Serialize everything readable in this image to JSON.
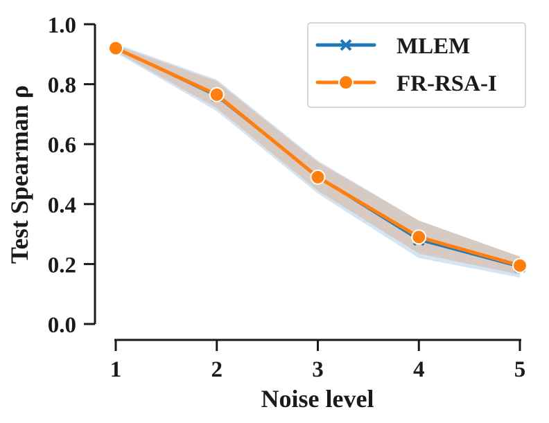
{
  "chart_data": {
    "type": "line",
    "title": "",
    "xlabel": "Noise level",
    "ylabel": "Test Spearman ρ",
    "x": [
      1,
      2,
      3,
      4,
      5
    ],
    "x_ticks": [
      "1",
      "2",
      "3",
      "4",
      "5"
    ],
    "y_ticks": [
      "0.0",
      "0.2",
      "0.4",
      "0.6",
      "0.8",
      "1.0"
    ],
    "ylim": [
      0.0,
      1.0
    ],
    "xlim": [
      1,
      5
    ],
    "grid": false,
    "legend_position": "top-right",
    "series": [
      {
        "name": "MLEM",
        "marker": "x",
        "color": "#1f77b4",
        "band_color": "#aecde8",
        "values": [
          0.92,
          0.76,
          0.49,
          0.28,
          0.19
        ],
        "ci_low": [
          0.905,
          0.71,
          0.435,
          0.22,
          0.155
        ],
        "ci_high": [
          0.935,
          0.815,
          0.545,
          0.345,
          0.225
        ]
      },
      {
        "name": "FR-RSA-I",
        "marker": "o",
        "color": "#ff7f0e",
        "band_color": "#d9b9a3",
        "values": [
          0.92,
          0.765,
          0.49,
          0.29,
          0.195
        ],
        "ci_low": [
          0.91,
          0.72,
          0.445,
          0.235,
          0.165
        ],
        "ci_high": [
          0.93,
          0.81,
          0.54,
          0.345,
          0.225
        ]
      }
    ]
  }
}
